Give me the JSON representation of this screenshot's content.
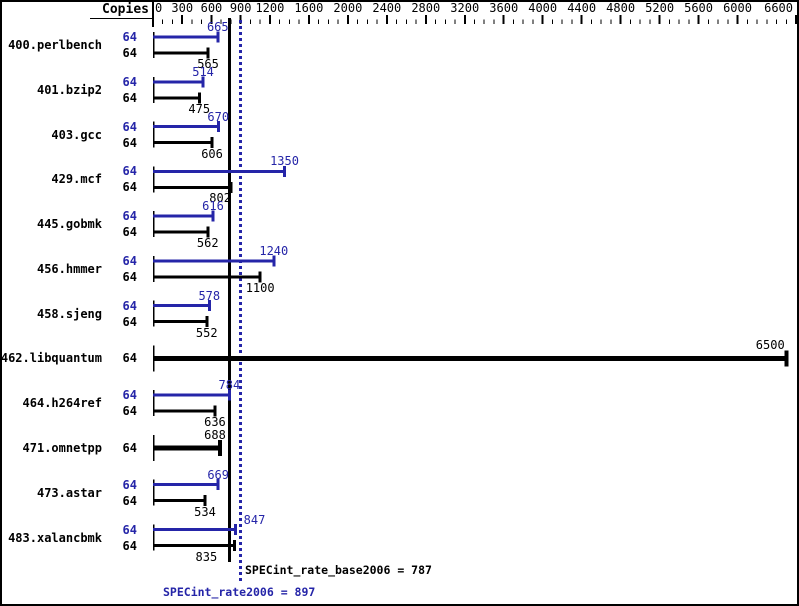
{
  "colors": {
    "peak_blue": "#2525a8",
    "black": "#000000",
    "background": "#ffffff"
  },
  "chart_data": {
    "type": "bar",
    "orientation": "horizontal",
    "copies_header": "Copies",
    "axis": {
      "min": 0,
      "max": 6600,
      "major_ticks": [
        0,
        300,
        600,
        900,
        1200,
        1600,
        2000,
        2400,
        2800,
        3200,
        3600,
        4000,
        4400,
        4800,
        5200,
        5600,
        6000,
        6600
      ],
      "minor_tick_step": 100,
      "position": "top"
    },
    "benchmarks": [
      {
        "name": "400.perlbench",
        "copies": 64,
        "peak": 665,
        "base": 565
      },
      {
        "name": "401.bzip2",
        "copies": 64,
        "peak": 514,
        "base": 475
      },
      {
        "name": "403.gcc",
        "copies": 64,
        "peak": 670,
        "base": 606
      },
      {
        "name": "429.mcf",
        "copies": 64,
        "peak": 1350,
        "base": 802
      },
      {
        "name": "445.gobmk",
        "copies": 64,
        "peak": 616,
        "base": 562
      },
      {
        "name": "456.hmmer",
        "copies": 64,
        "peak": 1240,
        "base": 1100
      },
      {
        "name": "458.sjeng",
        "copies": 64,
        "peak": 578,
        "base": 552
      },
      {
        "name": "462.libquantum",
        "copies": 64,
        "value": 6500,
        "single_bar": true
      },
      {
        "name": "464.h264ref",
        "copies": 64,
        "peak": 784,
        "base": 636
      },
      {
        "name": "471.omnetpp",
        "copies": 64,
        "value": 688,
        "single_bar": true
      },
      {
        "name": "473.astar",
        "copies": 64,
        "peak": 669,
        "base": 534
      },
      {
        "name": "483.xalancbmk",
        "copies": 64,
        "peak": 847,
        "base": 835
      }
    ],
    "reference_lines": [
      {
        "value": 787,
        "style": "solid",
        "color": "#000000",
        "label": "SPECint_rate_base2006 = 787"
      },
      {
        "value": 897,
        "style": "dotted",
        "color": "#2525a8",
        "label": "SPECint_rate2006 = 897"
      }
    ]
  }
}
